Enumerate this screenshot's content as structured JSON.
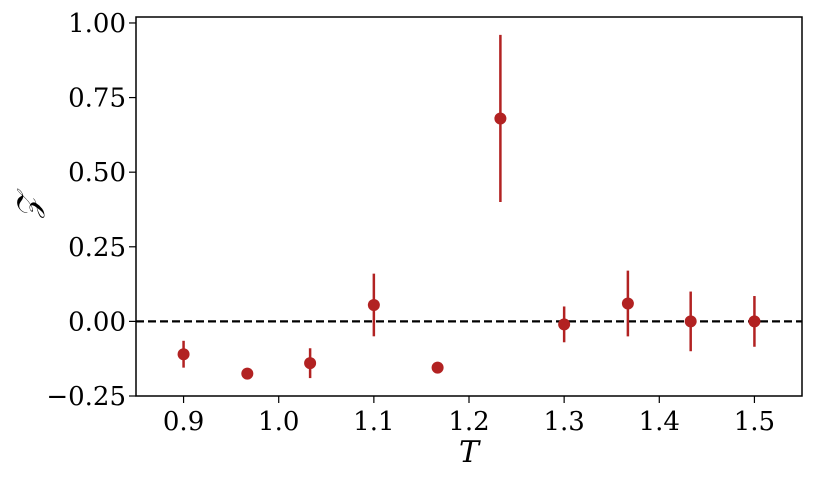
{
  "chart_data": {
    "type": "scatter",
    "xlabel": "T",
    "ylabel": "𝒵",
    "xlim": [
      0.85,
      1.55
    ],
    "ylim": [
      -0.25,
      1.02
    ],
    "xticks": [
      0.9,
      1.0,
      1.1,
      1.2,
      1.3,
      1.4,
      1.5
    ],
    "xtick_labels": [
      "0.9",
      "1.0",
      "1.1",
      "1.2",
      "1.3",
      "1.4",
      "1.5"
    ],
    "yticks": [
      -0.25,
      0.0,
      0.25,
      0.5,
      0.75,
      1.0
    ],
    "ytick_labels": [
      "−0.25",
      "0.00",
      "0.25",
      "0.50",
      "0.75",
      "1.00"
    ],
    "reference_line": {
      "y": 0.0,
      "style": "dashed",
      "color": "#000000"
    },
    "grid": false,
    "marker_color": "#b22222",
    "points": [
      {
        "x": 0.9,
        "y": -0.11,
        "err": 0.045
      },
      {
        "x": 0.967,
        "y": -0.175,
        "err": 0.0
      },
      {
        "x": 1.033,
        "y": -0.14,
        "err": 0.05
      },
      {
        "x": 1.1,
        "y": 0.055,
        "err": 0.105
      },
      {
        "x": 1.167,
        "y": -0.155,
        "err": 0.0
      },
      {
        "x": 1.233,
        "y": 0.68,
        "err": 0.28
      },
      {
        "x": 1.3,
        "y": -0.01,
        "err": 0.06
      },
      {
        "x": 1.367,
        "y": 0.06,
        "err": 0.11
      },
      {
        "x": 1.433,
        "y": 0.0,
        "err": 0.1
      },
      {
        "x": 1.5,
        "y": 0.0,
        "err": 0.085
      }
    ]
  }
}
